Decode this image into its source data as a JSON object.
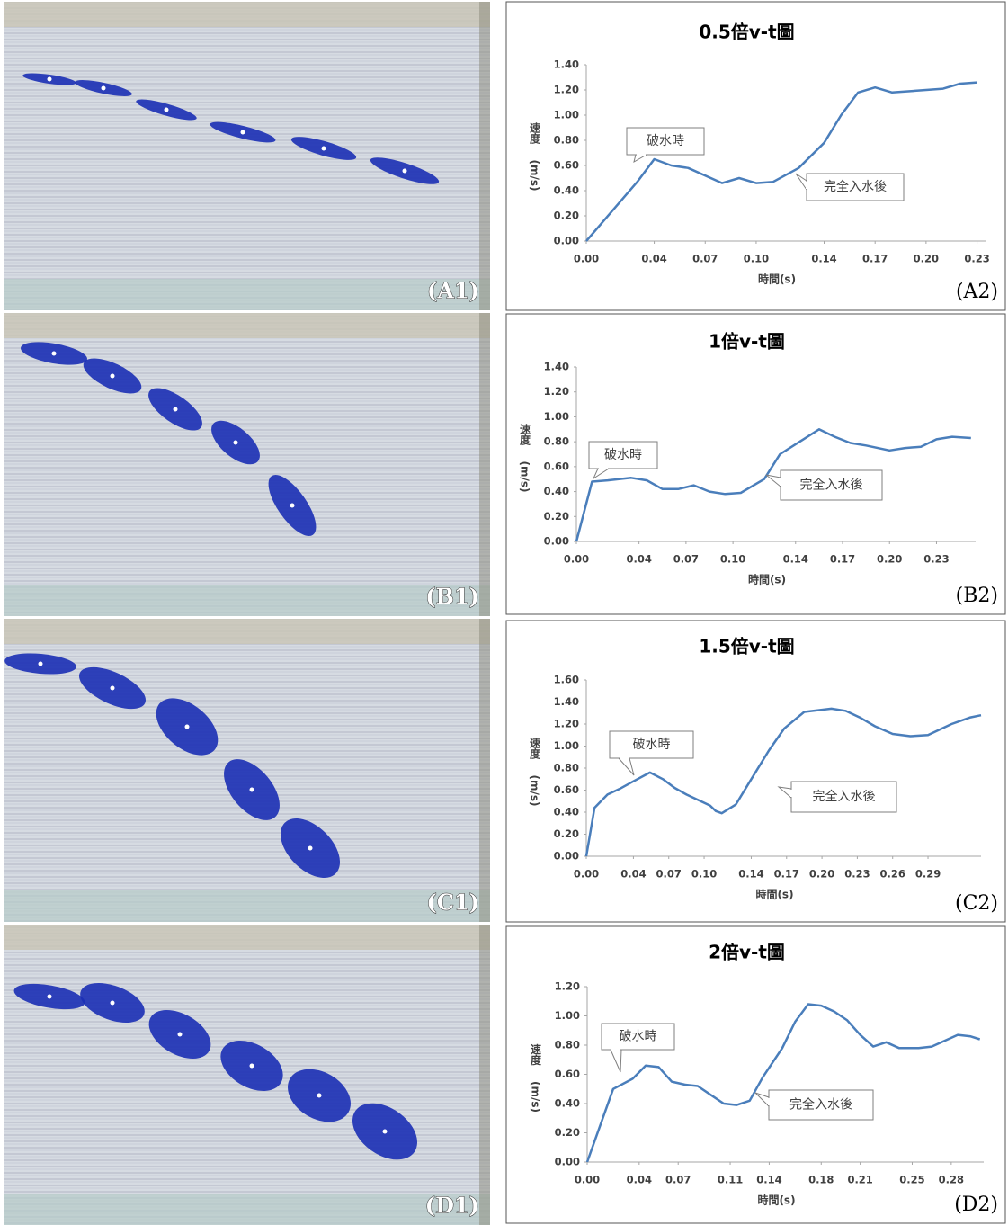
{
  "photos": [
    {
      "label": "(A1)"
    },
    {
      "label": "(B1)"
    },
    {
      "label": "(C1)"
    },
    {
      "label": "(D1)"
    }
  ],
  "chart_data": [
    {
      "type": "line",
      "title": "0.5倍v-t圖",
      "label": "(A2)",
      "xlabel": "時間(s)",
      "ylabel": "速度",
      "ylabel_unit": "(m/s)",
      "annotations": [
        "破水時",
        "完全入水後"
      ],
      "color": "#4a7ebb",
      "x": [
        0,
        0.03,
        0.04,
        0.05,
        0.06,
        0.08,
        0.09,
        0.1,
        0.11,
        0.125,
        0.14,
        0.15,
        0.16,
        0.17,
        0.18,
        0.2,
        0.21,
        0.22,
        0.23
      ],
      "values": [
        0,
        0.47,
        0.65,
        0.6,
        0.58,
        0.46,
        0.5,
        0.46,
        0.47,
        0.58,
        0.78,
        1.0,
        1.18,
        1.22,
        1.18,
        1.2,
        1.21,
        1.25,
        1.26
      ],
      "xlim": [
        0,
        0.235
      ],
      "ylim": [
        0,
        1.4
      ],
      "xticks": [
        {
          "value": 0,
          "label": "0.00"
        },
        0.04,
        0.07,
        {
          "value": 0.1,
          "label": "0.10"
        },
        0.14,
        0.17,
        {
          "value": 0.2,
          "label": "0.20"
        },
        0.23
      ],
      "yticks": [
        {
          "value": 0,
          "label": "0.00"
        },
        {
          "value": 0.2,
          "label": "0.20"
        },
        {
          "value": 0.4,
          "label": "0.40"
        },
        {
          "value": 0.6,
          "label": "0.60"
        },
        {
          "value": 0.8,
          "label": "0.80"
        },
        {
          "value": 1.0,
          "label": "1.00"
        },
        {
          "value": 1.2,
          "label": "1.20"
        },
        {
          "value": 1.4,
          "label": "1.40"
        }
      ]
    },
    {
      "type": "line",
      "title": "1倍v-t圖",
      "label": "(B2)",
      "xlabel": "時間(s)",
      "ylabel": "速度",
      "ylabel_unit": "(m/s)",
      "annotations": [
        "破水時",
        "完全入水後"
      ],
      "color": "#4a7ebb",
      "x": [
        0,
        0.01,
        0.02,
        0.035,
        0.045,
        0.055,
        0.065,
        0.075,
        0.085,
        0.095,
        0.105,
        0.12,
        0.13,
        0.145,
        0.155,
        0.165,
        0.175,
        0.185,
        0.2,
        0.21,
        0.22,
        0.23,
        0.24,
        0.252
      ],
      "values": [
        0,
        0.48,
        0.49,
        0.51,
        0.49,
        0.42,
        0.42,
        0.45,
        0.4,
        0.38,
        0.39,
        0.5,
        0.7,
        0.82,
        0.9,
        0.84,
        0.79,
        0.77,
        0.73,
        0.75,
        0.76,
        0.82,
        0.84,
        0.83
      ],
      "xlim": [
        0,
        0.255
      ],
      "ylim": [
        0,
        1.4
      ],
      "xticks": [
        {
          "value": 0,
          "label": "0.00"
        },
        0.04,
        0.07,
        {
          "value": 0.1,
          "label": "0.10"
        },
        0.14,
        0.17,
        {
          "value": 0.2,
          "label": "0.20"
        },
        0.23
      ],
      "yticks": [
        {
          "value": 0,
          "label": "0.00"
        },
        {
          "value": 0.2,
          "label": "0.20"
        },
        {
          "value": 0.4,
          "label": "0.40"
        },
        {
          "value": 0.6,
          "label": "0.60"
        },
        {
          "value": 0.8,
          "label": "0.80"
        },
        {
          "value": 1.0,
          "label": "1.00"
        },
        {
          "value": 1.2,
          "label": "1.20"
        },
        {
          "value": 1.4,
          "label": "1.40"
        }
      ]
    },
    {
      "type": "line",
      "title": "1.5倍v-t圖",
      "label": "(C2)",
      "xlabel": "時間(s)",
      "ylabel": "速度",
      "ylabel_unit": "(m/s)",
      "annotations": [
        "破水時",
        "完全入水後"
      ],
      "color": "#4a7ebb",
      "x": [
        0,
        0.007,
        0.018,
        0.028,
        0.04,
        0.054,
        0.065,
        0.075,
        0.085,
        0.095,
        0.105,
        0.11,
        0.115,
        0.127,
        0.14,
        0.155,
        0.168,
        0.185,
        0.208,
        0.22,
        0.232,
        0.245,
        0.26,
        0.275,
        0.29,
        0.3,
        0.31,
        0.318,
        0.326,
        0.335
      ],
      "values": [
        0,
        0.44,
        0.56,
        0.61,
        0.68,
        0.76,
        0.7,
        0.62,
        0.56,
        0.51,
        0.46,
        0.41,
        0.39,
        0.47,
        0.7,
        0.96,
        1.16,
        1.31,
        1.34,
        1.32,
        1.26,
        1.18,
        1.11,
        1.09,
        1.1,
        1.15,
        1.2,
        1.23,
        1.26,
        1.28
      ],
      "xlim": [
        0,
        0.335
      ],
      "ylim": [
        0,
        1.6
      ],
      "xticks": [
        {
          "value": 0,
          "label": "0.00"
        },
        0.04,
        0.07,
        {
          "value": 0.1,
          "label": "0.10"
        },
        0.14,
        0.17,
        {
          "value": 0.2,
          "label": "0.20"
        },
        0.23,
        0.26,
        0.29
      ],
      "yticks": [
        {
          "value": 0,
          "label": "0.00"
        },
        {
          "value": 0.2,
          "label": "0.20"
        },
        {
          "value": 0.4,
          "label": "0.40"
        },
        {
          "value": 0.6,
          "label": "0.60"
        },
        {
          "value": 0.8,
          "label": "0.80"
        },
        {
          "value": 1.0,
          "label": "1.00"
        },
        {
          "value": 1.2,
          "label": "1.20"
        },
        {
          "value": 1.4,
          "label": "1.40"
        },
        {
          "value": 1.6,
          "label": "1.60"
        }
      ]
    },
    {
      "type": "line",
      "title": "2倍v-t圖",
      "label": "(D2)",
      "xlabel": "時間(s)",
      "ylabel": "速度",
      "ylabel_unit": "(m/s)",
      "annotations": [
        "破水時",
        "完全入水後"
      ],
      "color": "#4a7ebb",
      "x": [
        0,
        0.02,
        0.035,
        0.045,
        0.055,
        0.065,
        0.075,
        0.085,
        0.095,
        0.105,
        0.115,
        0.125,
        0.135,
        0.15,
        0.16,
        0.17,
        0.18,
        0.19,
        0.2,
        0.21,
        0.22,
        0.23,
        0.24,
        0.255,
        0.265,
        0.275,
        0.285,
        0.295,
        0.302
      ],
      "values": [
        0,
        0.5,
        0.57,
        0.66,
        0.65,
        0.55,
        0.53,
        0.52,
        0.46,
        0.4,
        0.39,
        0.42,
        0.58,
        0.78,
        0.96,
        1.08,
        1.07,
        1.03,
        0.97,
        0.87,
        0.79,
        0.82,
        0.78,
        0.78,
        0.79,
        0.83,
        0.87,
        0.86,
        0.84
      ],
      "xlim": [
        0,
        0.305
      ],
      "ylim": [
        0,
        1.2
      ],
      "xticks": [
        {
          "value": 0,
          "label": "0.00"
        },
        0.04,
        0.07,
        0.11,
        0.14,
        0.18,
        0.21,
        0.25,
        0.28
      ],
      "yticks": [
        {
          "value": 0,
          "label": "0.00"
        },
        {
          "value": 0.2,
          "label": "0.20"
        },
        {
          "value": 0.4,
          "label": "0.40"
        },
        {
          "value": 0.6,
          "label": "0.60"
        },
        {
          "value": 0.8,
          "label": "0.80"
        },
        {
          "value": 1.0,
          "label": "1.00"
        },
        {
          "value": 1.2,
          "label": "1.20"
        }
      ]
    }
  ]
}
